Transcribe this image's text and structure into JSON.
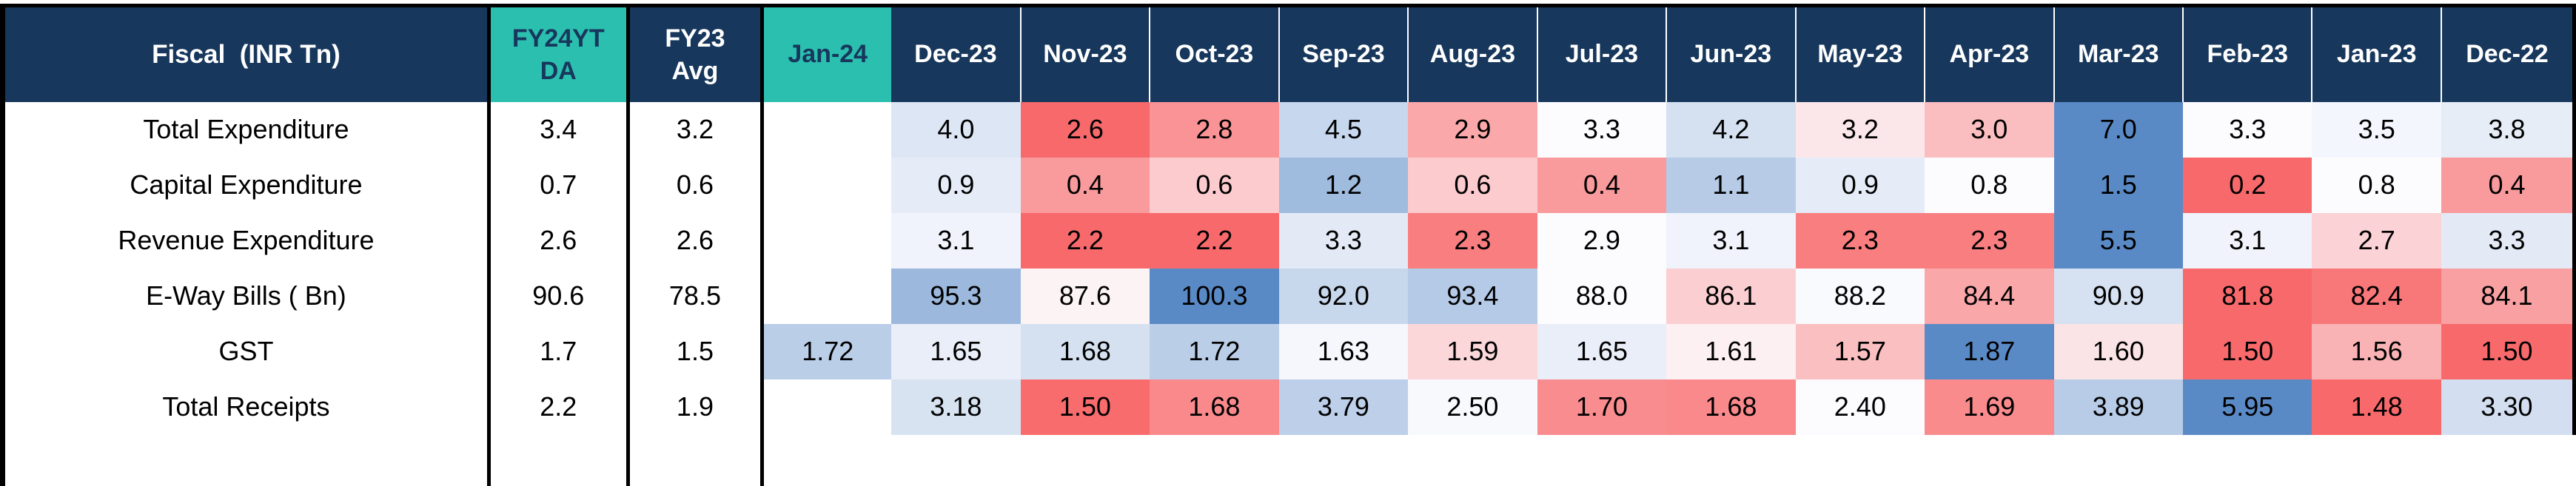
{
  "chart_data": {
    "type": "heatmap",
    "title": "Fiscal  (INR Tn)",
    "corner_header": "Fiscal  (INR Tn)",
    "summary_columns": [
      "FY24YTDA",
      "FY23 Avg"
    ],
    "month_columns": [
      "Jan-24",
      "Dec-23",
      "Nov-23",
      "Oct-23",
      "Sep-23",
      "Aug-23",
      "Jul-23",
      "Jun-23",
      "May-23",
      "Apr-23",
      "Mar-23",
      "Feb-23",
      "Jan-23",
      "Dec-22"
    ],
    "rows": [
      {
        "label": "Total Expenditure",
        "summary": [
          "3.4",
          "3.2"
        ],
        "monthly": [
          "",
          "4.0",
          "2.6",
          "2.8",
          "4.5",
          "2.9",
          "3.3",
          "4.2",
          "3.2",
          "3.0",
          "7.0",
          "3.3",
          "3.5",
          "3.8"
        ]
      },
      {
        "label": "Capital Expenditure",
        "summary": [
          "0.7",
          "0.6"
        ],
        "monthly": [
          "",
          "0.9",
          "0.4",
          "0.6",
          "1.2",
          "0.6",
          "0.4",
          "1.1",
          "0.9",
          "0.8",
          "1.5",
          "0.2",
          "0.8",
          "0.4"
        ]
      },
      {
        "label": "Revenue Expenditure",
        "summary": [
          "2.6",
          "2.6"
        ],
        "monthly": [
          "",
          "3.1",
          "2.2",
          "2.2",
          "3.3",
          "2.3",
          "2.9",
          "3.1",
          "2.3",
          "2.3",
          "5.5",
          "3.1",
          "2.7",
          "3.3"
        ]
      },
      {
        "label": "E-Way Bills ( Bn)",
        "summary": [
          "90.6",
          "78.5"
        ],
        "monthly": [
          "",
          "95.3",
          "87.6",
          "100.3",
          "92.0",
          "93.4",
          "88.0",
          "86.1",
          "88.2",
          "84.4",
          "90.9",
          "81.8",
          "82.4",
          "84.1"
        ]
      },
      {
        "label": "GST",
        "summary": [
          "1.7",
          "1.5"
        ],
        "monthly": [
          "1.72",
          "1.65",
          "1.68",
          "1.72",
          "1.63",
          "1.59",
          "1.65",
          "1.61",
          "1.57",
          "1.87",
          "1.60",
          "1.50",
          "1.56",
          "1.50"
        ]
      },
      {
        "label": "Total Receipts",
        "summary": [
          "2.2",
          "1.9"
        ],
        "monthly": [
          "",
          "3.18",
          "1.50",
          "1.68",
          "3.79",
          "2.50",
          "1.70",
          "1.68",
          "2.40",
          "1.69",
          "3.89",
          "5.95",
          "1.48",
          "3.30"
        ]
      }
    ],
    "color_scale": {
      "min_color": "#F8696B",
      "mid_color": "#FCFCFF",
      "max_color": "#5A8AC6",
      "midpoint": "per-row 50th percentile"
    },
    "layout": {
      "legend": "none",
      "grid": "off",
      "blank_cells_color": "#FFFFFF"
    }
  },
  "colors": {
    "header_navy": "#17375C",
    "accent_teal": "#2BBFAF",
    "header_text": "#FFFFFF",
    "teal_header_text": "#17375C",
    "cell_text": "#000000",
    "border_black": "#000000"
  }
}
